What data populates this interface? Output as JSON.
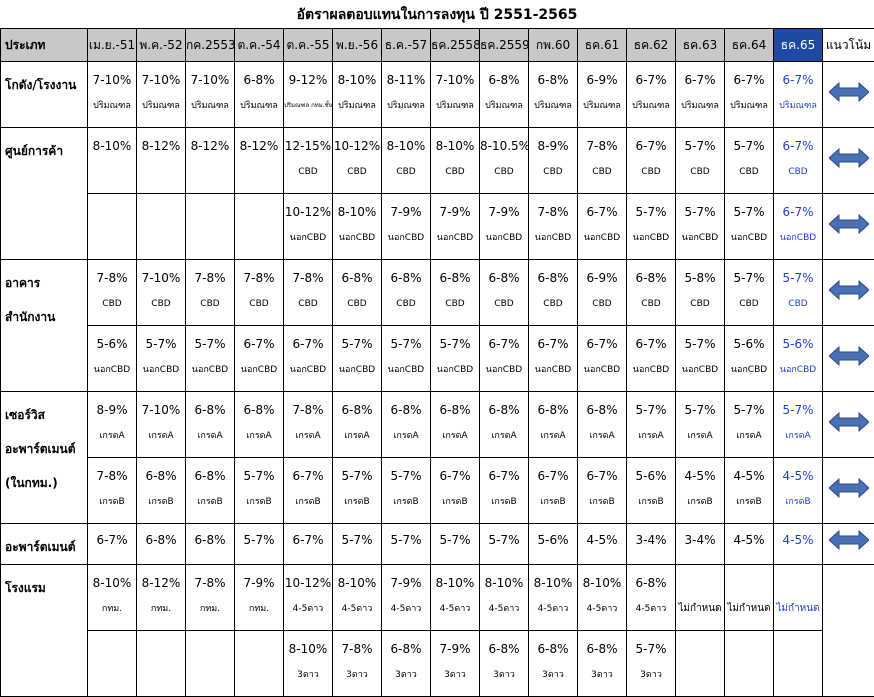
{
  "title": "อัตราผลตอบแทนในการลงทุน ปี 2551-2565",
  "header": {
    "category": "ประเภท",
    "periods": [
      "เม.ย.-51",
      "พ.ค.-52",
      "กค.2553",
      "ต.ค.-54",
      "ต.ค.-55",
      "พ.ย.-56",
      "ธ.ค.-57",
      "ธค.2558",
      "ธค.2559",
      "กพ.60",
      "ธค.61",
      "ธค.62",
      "ธค.63",
      "ธค.64",
      "ธค.65"
    ],
    "trend": "แนวโน้ม"
  },
  "colors": {
    "header_bg": "#c8c8c8",
    "highlight_header_bg": "#1f4aa3",
    "highlight_text": "#1f3fd1",
    "arrow_fill": "#4a70b4"
  },
  "icons": {
    "trend": "double-arrow-icon"
  },
  "rows": [
    {
      "category": [
        "โกดัง/โรงงาน"
      ],
      "values": [
        "7-10%",
        "7-10%",
        "7-10%",
        "6-8%",
        "9-12%",
        "8-10%",
        "8-11%",
        "7-10%",
        "6-8%",
        "6-8%",
        "6-9%",
        "6-7%",
        "6-7%",
        "6-7%",
        "6-7%"
      ],
      "sub": [
        "ปริมณฑล",
        "ปริมณฑล",
        "ปริมณฑล",
        "ปริมณฑล",
        "ปริมณฑล กทม.ชั้นนอก",
        "ปริมณฑล",
        "ปริมณฑล",
        "ปริมณฑล",
        "ปริมณฑล",
        "ปริมณฑล",
        "ปริมณฑล",
        "ปริมณฑล",
        "ปริมณฑล",
        "ปริมณฑล",
        "ปริมณฑล"
      ]
    },
    {
      "category": [
        "ศูนย์การค้า"
      ],
      "values": [
        "8-10%",
        "8-12%",
        "8-12%",
        "8-12%",
        "12-15%",
        "10-12%",
        "8-10%",
        "8-10%",
        "8-10.5%",
        "8-9%",
        "7-8%",
        "6-7%",
        "5-7%",
        "5-7%",
        "6-7%"
      ],
      "sub": [
        "",
        "",
        "",
        "",
        "CBD",
        "CBD",
        "CBD",
        "CBD",
        "CBD",
        "CBD",
        "CBD",
        "CBD",
        "CBD",
        "CBD",
        "CBD"
      ]
    },
    {
      "category": [],
      "values": [
        "",
        "",
        "",
        "",
        "10-12%",
        "8-10%",
        "7-9%",
        "7-9%",
        "7-9%",
        "7-8%",
        "6-7%",
        "5-7%",
        "5-7%",
        "5-7%",
        "6-7%"
      ],
      "sub": [
        "",
        "",
        "",
        "",
        "นอกCBD",
        "นอกCBD",
        "นอกCBD",
        "นอกCBD",
        "นอกCBD",
        "นอกCBD",
        "นอกCBD",
        "นอกCBD",
        "นอกCBD",
        "นอกCBD",
        "นอกCBD"
      ]
    },
    {
      "category": [
        "อาคารสำนักงาน"
      ],
      "values": [
        "7-8%",
        "7-10%",
        "7-8%",
        "7-8%",
        "7-8%",
        "6-8%",
        "6-8%",
        "6-8%",
        "6-8%",
        "6-8%",
        "6-9%",
        "6-8%",
        "5-8%",
        "5-7%",
        "5-7%"
      ],
      "sub": [
        "CBD",
        "CBD",
        "CBD",
        "CBD",
        "CBD",
        "CBD",
        "CBD",
        "CBD",
        "CBD",
        "CBD",
        "CBD",
        "CBD",
        "CBD",
        "CBD",
        "CBD"
      ]
    },
    {
      "category": [],
      "values": [
        "5-6%",
        "5-7%",
        "5-7%",
        "6-7%",
        "6-7%",
        "5-7%",
        "5-7%",
        "5-7%",
        "6-7%",
        "6-7%",
        "6-7%",
        "6-7%",
        "5-7%",
        "5-6%",
        "5-6%"
      ],
      "sub": [
        "นอกCBD",
        "นอกCBD",
        "นอกCBD",
        "นอกCBD",
        "นอกCBD",
        "นอกCBD",
        "นอกCBD",
        "นอกCBD",
        "นอกCBD",
        "นอกCBD",
        "นอกCBD",
        "นอกCBD",
        "นอกCBD",
        "นอกCBD",
        "นอกCBD"
      ]
    },
    {
      "category": [
        "เซอร์วิส",
        "อะพาร์ตเมนต์",
        "(ในกทม.)"
      ],
      "values": [
        "8-9%",
        "7-10%",
        "6-8%",
        "6-8%",
        "7-8%",
        "6-8%",
        "6-8%",
        "6-8%",
        "6-8%",
        "6-8%",
        "6-8%",
        "5-7%",
        "5-7%",
        "5-7%",
        "5-7%"
      ],
      "sub": [
        "เกรดA",
        "เกรดA",
        "เกรดA",
        "เกรดA",
        "เกรดA",
        "เกรดA",
        "เกรดA",
        "เกรดA",
        "เกรดA",
        "เกรดA",
        "เกรดA",
        "เกรดA",
        "เกรดA",
        "เกรดA",
        "เกรดA"
      ]
    },
    {
      "category": [],
      "values": [
        "7-8%",
        "6-8%",
        "6-8%",
        "5-7%",
        "6-7%",
        "5-7%",
        "5-7%",
        "6-7%",
        "6-7%",
        "6-7%",
        "6-7%",
        "5-6%",
        "4-5%",
        "4-5%",
        "4-5%"
      ],
      "sub": [
        "เกรดB",
        "เกรดB",
        "เกรดB",
        "เกรดB",
        "เกรดB",
        "เกรดB",
        "เกรดB",
        "เกรดB",
        "เกรดB",
        "เกรดB",
        "เกรดB",
        "เกรดB",
        "เกรดB",
        "เกรดB",
        "เกรดB"
      ]
    },
    {
      "category": [
        "อะพาร์ตเมนต์"
      ],
      "values": [
        "6-7%",
        "6-8%",
        "6-8%",
        "5-7%",
        "6-7%",
        "5-7%",
        "5-7%",
        "5-7%",
        "5-7%",
        "5-6%",
        "4-5%",
        "3-4%",
        "3-4%",
        "4-5%",
        "4-5%"
      ],
      "sub": [
        "",
        "",
        "",
        "",
        "",
        "",
        "",
        "",
        "",
        "",
        "",
        "",
        "",
        "",
        ""
      ]
    },
    {
      "category": [
        "โรงแรม"
      ],
      "values": [
        "8-10%",
        "8-12%",
        "7-8%",
        "7-9%",
        "10-12%",
        "8-10%",
        "7-9%",
        "8-10%",
        "8-10%",
        "8-10%",
        "8-10%",
        "6-8%",
        "ไม่กำหนด",
        "ไม่กำหนด",
        "ไม่กำหนด"
      ],
      "sub": [
        "กทม.",
        "กทม.",
        "กทม.",
        "กทม.",
        "4-5ดาว",
        "4-5ดาว",
        "4-5ดาว",
        "4-5ดาว",
        "4-5ดาว",
        "4-5ดาว",
        "4-5ดาว",
        "4-5ดาว",
        "",
        "",
        ""
      ]
    },
    {
      "category": [],
      "values": [
        "",
        "",
        "",
        "",
        "8-10%",
        "7-8%",
        "6-8%",
        "7-9%",
        "6-8%",
        "6-8%",
        "6-8%",
        "5-7%",
        "",
        "",
        ""
      ],
      "sub": [
        "",
        "",
        "",
        "",
        "3ดาว",
        "3ดาว",
        "3ดาว",
        "3ดาว",
        "3ดาว",
        "3ดาว",
        "3ดาว",
        "3ดาว",
        "",
        "",
        ""
      ]
    }
  ]
}
